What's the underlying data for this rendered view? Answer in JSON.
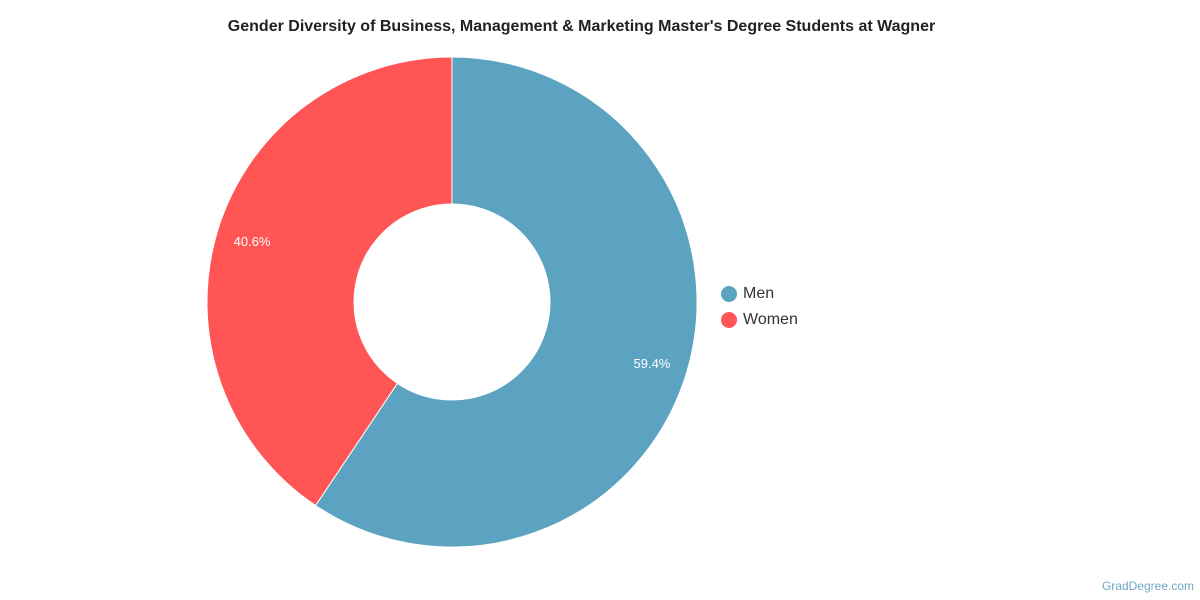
{
  "chart_data": {
    "type": "pie",
    "donut": true,
    "title": "Gender Diversity of Business, Management & Marketing Master's Degree Students at Wagner",
    "categories": [
      "Men",
      "Women"
    ],
    "values": [
      59.4,
      40.6
    ],
    "labels": [
      "59.4%",
      "40.6%"
    ],
    "colors": [
      "#5ba3c0",
      "#ff5555"
    ],
    "legend_position": "right"
  },
  "watermark": "GradDegree.com"
}
